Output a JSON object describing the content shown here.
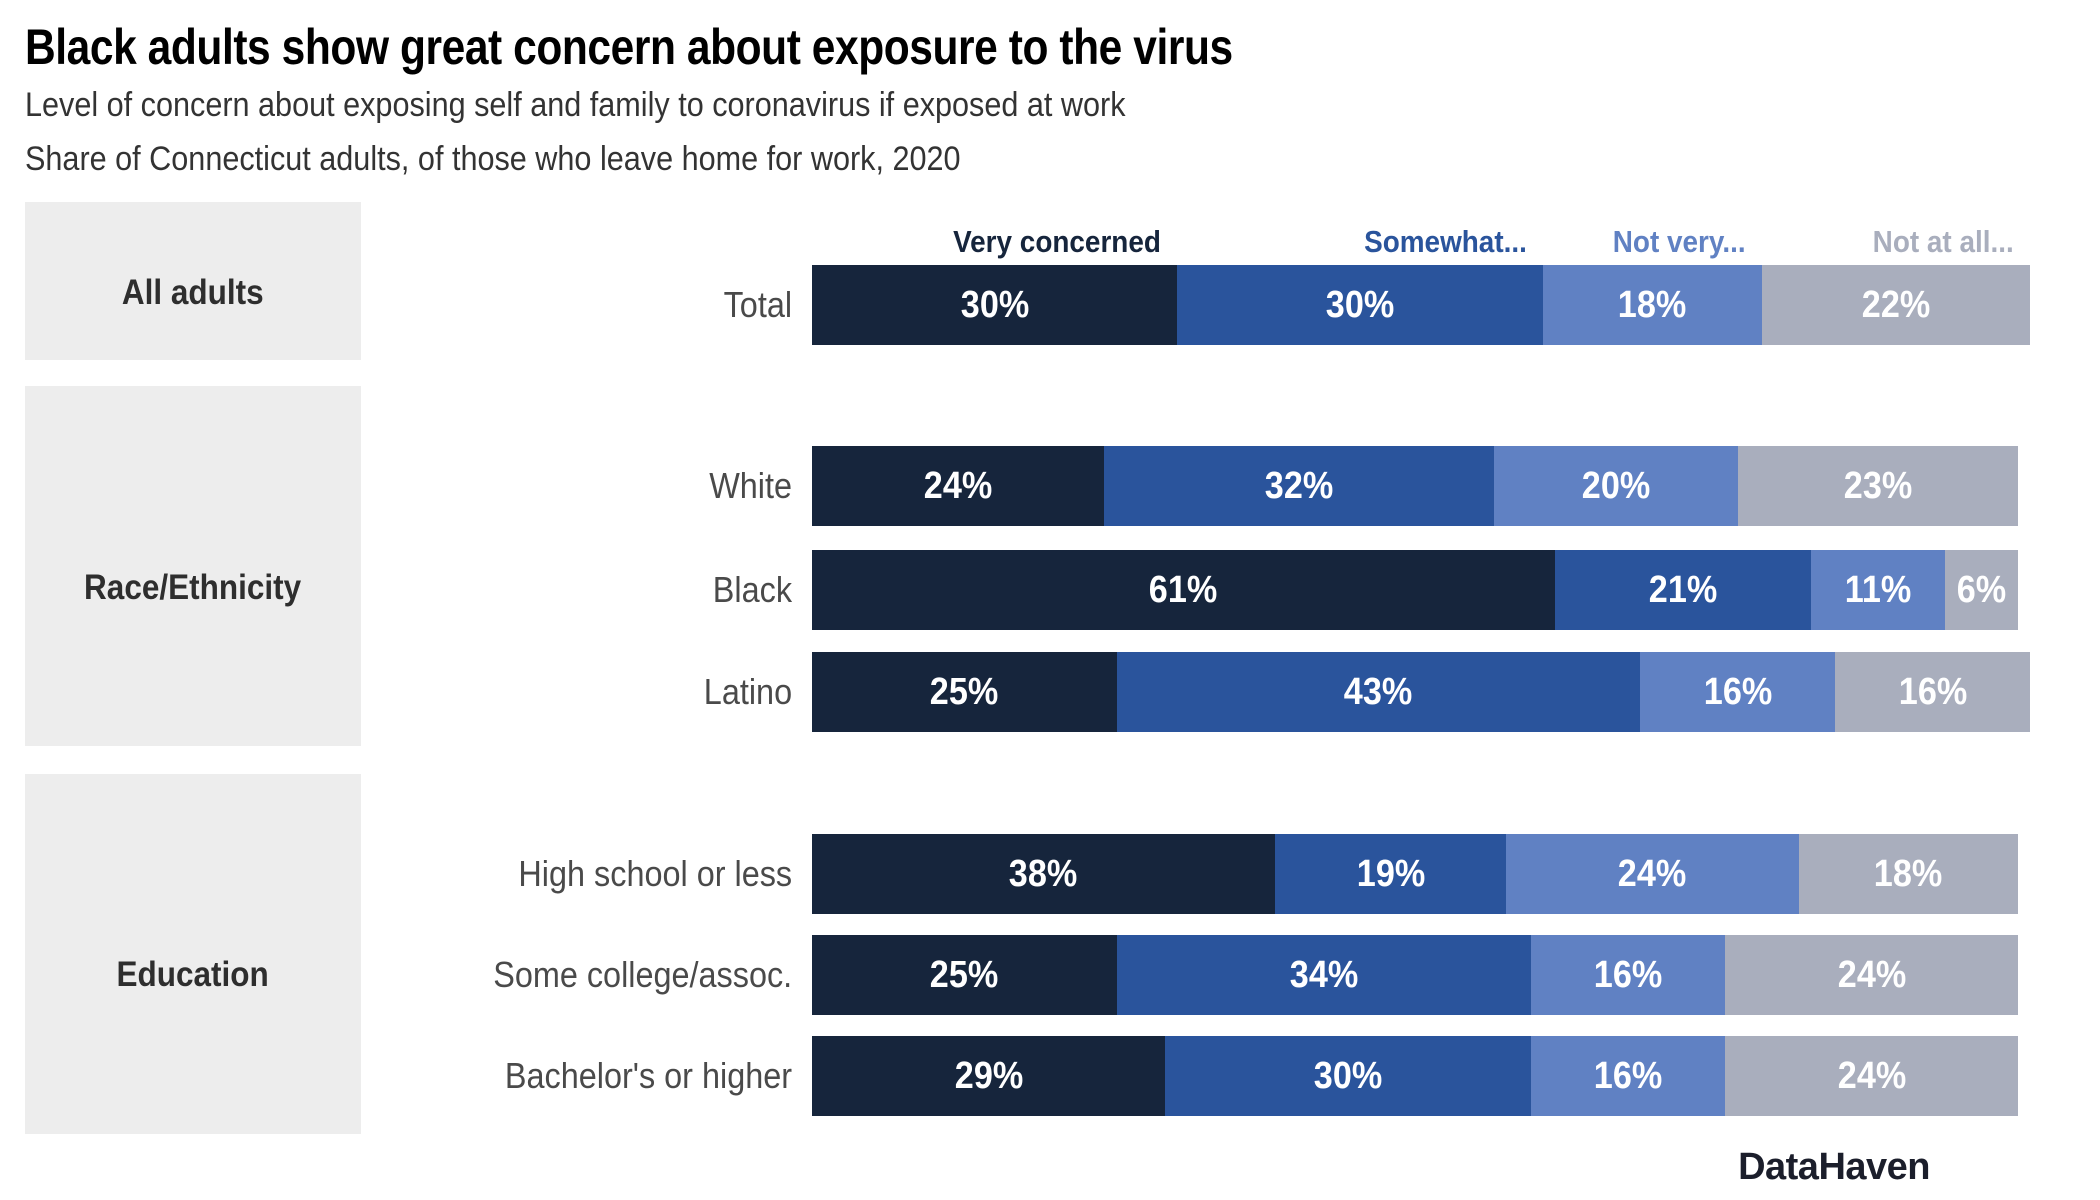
{
  "chart_data": {
    "type": "bar",
    "orientation": "horizontal",
    "stacked": true,
    "grid": false,
    "xlim": [
      0,
      100
    ],
    "value_suffix": "%",
    "legend_position": "top",
    "title": "Black adults show great concern about exposure to the virus",
    "subtitle1": "Level of concern about exposing self and family to coronavirus if exposed at work",
    "subtitle2": "Share of Connecticut adults, of those who leave home for work, 2020",
    "source": "DataHaven",
    "series": [
      {
        "name": "Very concerned",
        "color": "#16253C"
      },
      {
        "name": "Somewhat...",
        "color": "#2A549C"
      },
      {
        "name": "Not very...",
        "color": "#6081C3"
      },
      {
        "name": "Not at all...",
        "color": "#A9AEBD"
      }
    ],
    "groups": [
      {
        "label": "All adults",
        "rows": [
          {
            "label": "Total",
            "values": [
              30,
              30,
              18,
              22
            ]
          }
        ]
      },
      {
        "label": "Race/Ethnicity",
        "rows": [
          {
            "label": "White",
            "values": [
              24,
              32,
              20,
              23
            ]
          },
          {
            "label": "Black",
            "values": [
              61,
              21,
              11,
              6
            ]
          },
          {
            "label": "Latino",
            "values": [
              25,
              43,
              16,
              16
            ]
          }
        ]
      },
      {
        "label": "Education",
        "rows": [
          {
            "label": "High school or less",
            "values": [
              38,
              19,
              24,
              18
            ]
          },
          {
            "label": "Some college/assoc.",
            "values": [
              25,
              34,
              16,
              24
            ]
          },
          {
            "label": "Bachelor's or higher",
            "values": [
              29,
              30,
              16,
              24
            ]
          }
        ]
      }
    ],
    "colors": {
      "group_box_bg": "#EDEDED",
      "row_label_text": "#4A4A4A",
      "group_label_text": "#2E2E2E",
      "subtitle_text": "#333333",
      "title_text": "#000000",
      "bar_value_text": "#FFFFFF"
    }
  }
}
